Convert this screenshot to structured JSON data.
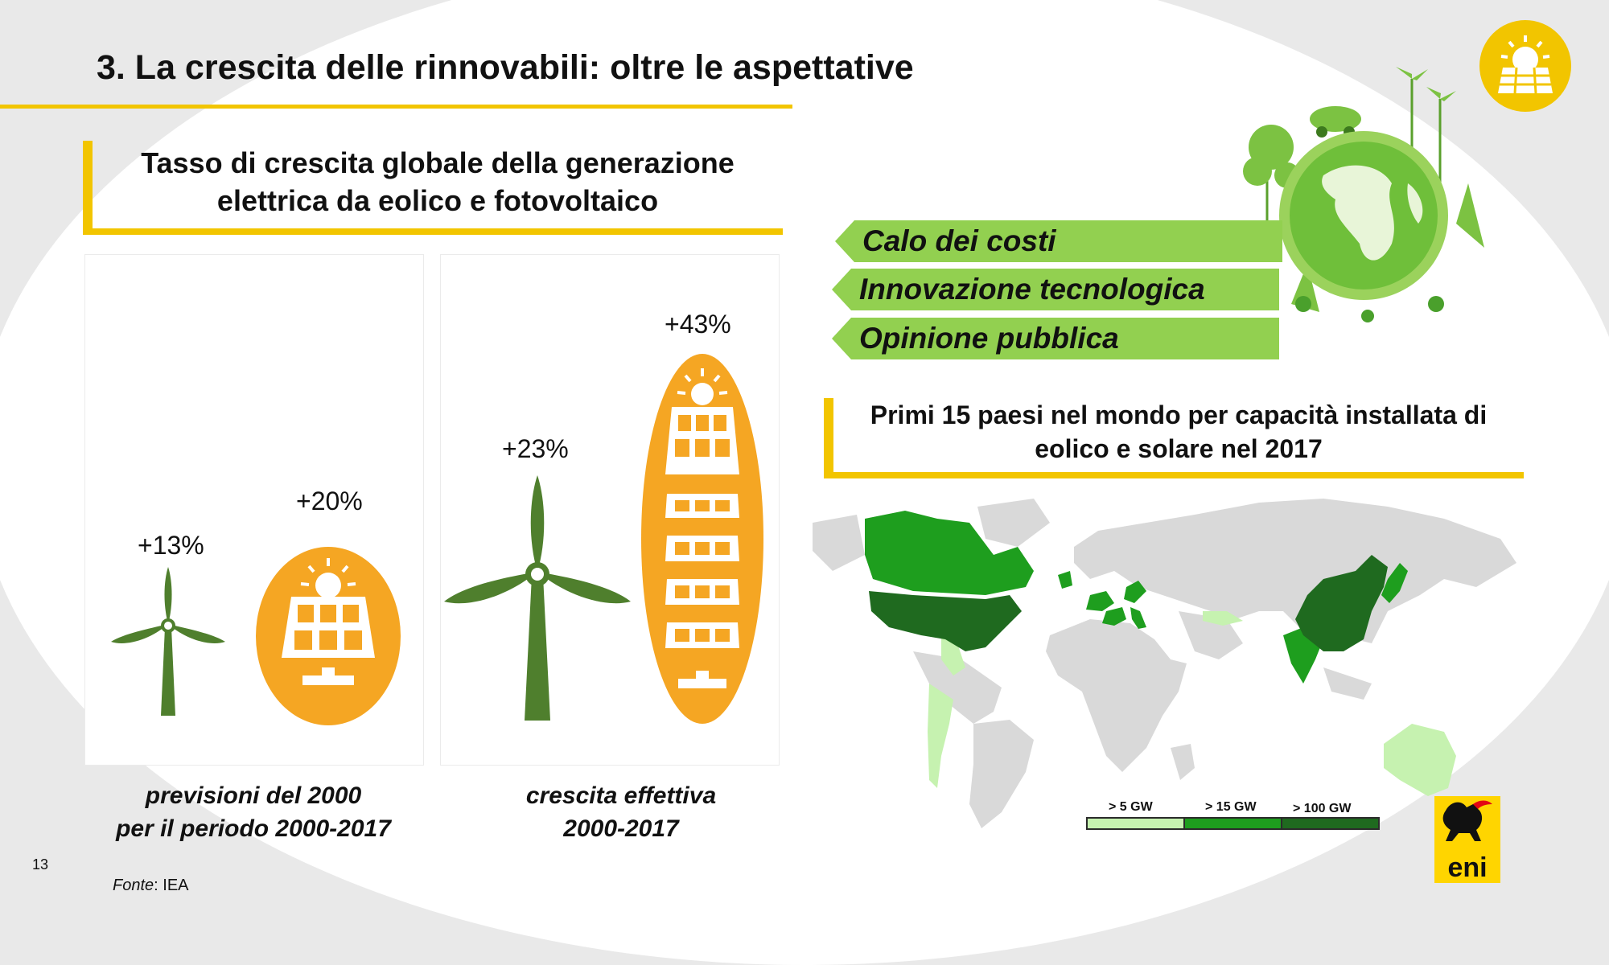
{
  "slide": {
    "title": "3. La crescita delle rinnovabili: oltre le aspettative",
    "page_number": "13",
    "source_label": "Fonte",
    "source_text": ": IEA"
  },
  "growth_section": {
    "heading_line1": "Tasso di crescita globale della generazione",
    "heading_line2": "elettrica da eolico e fotovoltaico",
    "panels": [
      {
        "caption_line1": "previsioni del 2000",
        "caption_line2": "per il periodo 2000-2017",
        "wind_label": "+13%",
        "solar_label": "+20%"
      },
      {
        "caption_line1": "crescita effettiva",
        "caption_line2": "2000-2017",
        "wind_label": "+23%",
        "solar_label": "+43%"
      }
    ]
  },
  "drivers": [
    "Calo dei costi",
    "Innovazione tecnologica",
    "Opinione pubblica"
  ],
  "countries_section": {
    "heading_line1": "Primi 15 paesi nel mondo per capacità installata di",
    "heading_line2": "eolico e solare nel 2017",
    "legend": [
      {
        "label": "> 5 GW",
        "color": "#c6f2b0"
      },
      {
        "label": "> 15 GW",
        "color": "#1e9e1e"
      },
      {
        "label": "> 100 GW",
        "color": "#1f6a1f"
      }
    ]
  },
  "colors": {
    "accent_yellow": "#f2c500",
    "solar_orange": "#f5a623",
    "wind_green": "#4f7f2d",
    "driver_green": "#92d050",
    "map_grey": "#d9d9d9"
  },
  "icons": [
    "solar-sun-badge-icon",
    "globe-eco-icon",
    "wind-turbine-icon",
    "solar-panel-icon",
    "world-map",
    "eni-logo"
  ]
}
